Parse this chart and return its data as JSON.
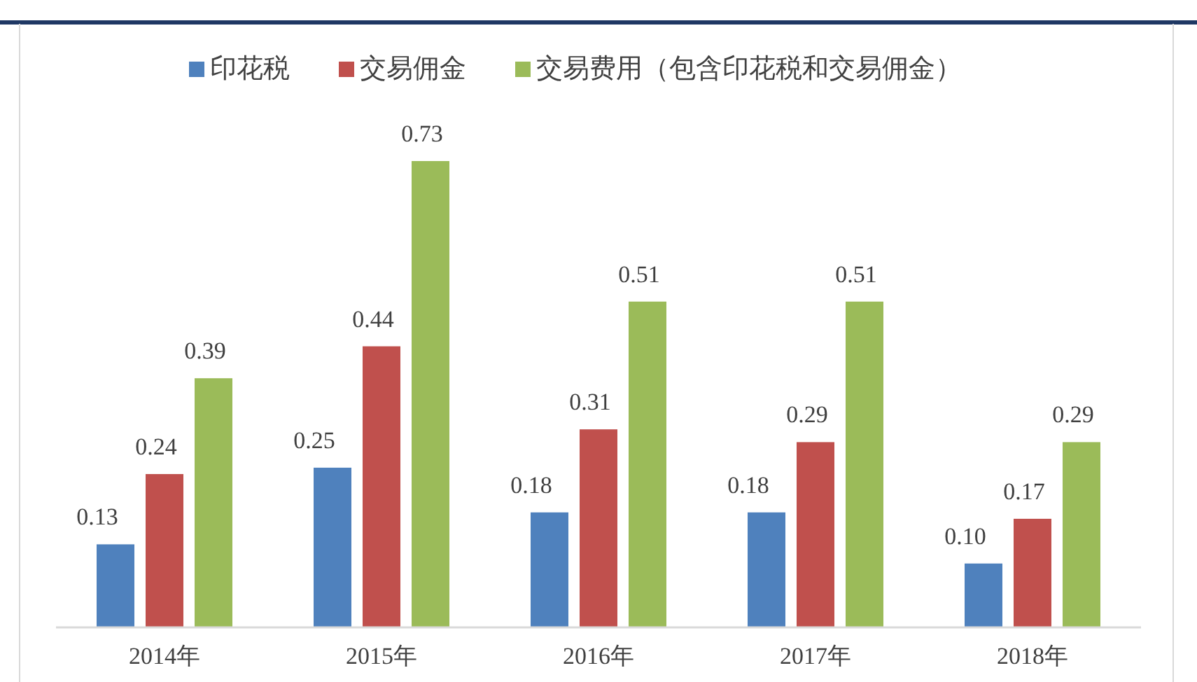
{
  "chart_data": {
    "type": "bar",
    "categories": [
      "2014年",
      "2015年",
      "2016年",
      "2017年",
      "2018年"
    ],
    "series": [
      {
        "name": "印花税",
        "color": "#4f81bd",
        "values": [
          0.13,
          0.25,
          0.18,
          0.18,
          0.1
        ],
        "value_labels": [
          "0.13",
          "0.25",
          "0.18",
          "0.18",
          "0.10"
        ]
      },
      {
        "name": "交易佣金",
        "color": "#c0504d",
        "values": [
          0.24,
          0.44,
          0.31,
          0.29,
          0.17
        ],
        "value_labels": [
          "0.24",
          "0.44",
          "0.31",
          "0.29",
          "0.17"
        ]
      },
      {
        "name": "交易费用（包含印花税和交易佣金）",
        "color": "#9bbb59",
        "values": [
          0.39,
          0.73,
          0.51,
          0.51,
          0.29
        ],
        "value_labels": [
          "0.39",
          "0.73",
          "0.51",
          "0.51",
          "0.29"
        ]
      }
    ],
    "legend": "top"
  }
}
